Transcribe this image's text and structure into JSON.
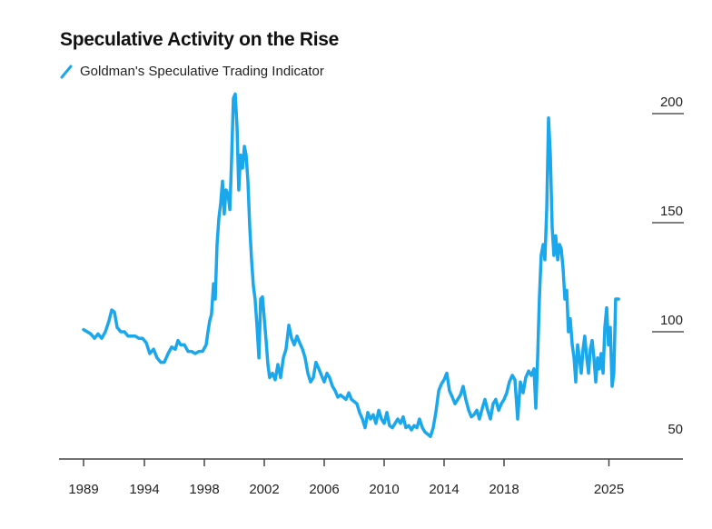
{
  "chart_data": {
    "type": "line",
    "title": "Speculative Activity on the Rise",
    "legend": [
      {
        "label": "Goldman's Speculative Trading Indicator",
        "color": "#1aa7ec"
      }
    ],
    "legend_position": "top-left",
    "xlabel": "",
    "ylabel": "",
    "x_ticks": [
      1989,
      1994,
      1998,
      2002,
      2006,
      2010,
      2014,
      2018,
      2025
    ],
    "y_ticks": [
      50,
      100,
      150,
      200
    ],
    "ylim": [
      42,
      210
    ],
    "y_axis_position": "right",
    "grid": false,
    "series": [
      {
        "name": "Goldman's Speculative Trading Indicator",
        "color": "#1aa7ec",
        "x": [
          1989.0,
          1989.3,
          1989.6,
          1989.9,
          1990.19,
          1990.49,
          1990.79,
          1991.09,
          1991.31,
          1991.54,
          1991.76,
          1992.06,
          1992.36,
          1992.66,
          1992.96,
          1993.25,
          1993.55,
          1993.85,
          1994.12,
          1994.36,
          1994.61,
          1994.85,
          1995.09,
          1995.33,
          1995.58,
          1995.82,
          1996.06,
          1996.24,
          1996.42,
          1996.67,
          1996.91,
          1997.15,
          1997.39,
          1997.64,
          1997.88,
          1998.12,
          1998.24,
          1998.36,
          1998.48,
          1998.61,
          1998.73,
          1998.85,
          1998.97,
          1999.09,
          1999.21,
          1999.33,
          1999.45,
          1999.58,
          1999.7,
          1999.82,
          1999.94,
          2000.06,
          2000.18,
          2000.3,
          2000.42,
          2000.55,
          2000.67,
          2000.79,
          2000.91,
          2001.03,
          2001.15,
          2001.27,
          2001.39,
          2001.52,
          2001.64,
          2001.76,
          2001.88,
          2002.0,
          2002.12,
          2002.24,
          2002.36,
          2002.55,
          2002.73,
          2002.91,
          2003.09,
          2003.27,
          2003.45,
          2003.64,
          2003.82,
          2004.0,
          2004.18,
          2004.36,
          2004.55,
          2004.73,
          2004.91,
          2005.09,
          2005.27,
          2005.45,
          2005.64,
          2005.82,
          2006.0,
          2006.18,
          2006.36,
          2006.55,
          2006.73,
          2006.91,
          2007.09,
          2007.27,
          2007.45,
          2007.64,
          2007.82,
          2008.0,
          2008.18,
          2008.36,
          2008.55,
          2008.73,
          2008.91,
          2009.09,
          2009.27,
          2009.45,
          2009.64,
          2009.82,
          2010.0,
          2010.18,
          2010.36,
          2010.55,
          2010.73,
          2010.91,
          2011.09,
          2011.27,
          2011.45,
          2011.64,
          2011.82,
          2012.0,
          2012.18,
          2012.36,
          2012.55,
          2012.73,
          2012.91,
          2013.09,
          2013.27,
          2013.45,
          2013.64,
          2013.82,
          2014.0,
          2014.18,
          2014.36,
          2014.55,
          2014.73,
          2014.91,
          2015.09,
          2015.27,
          2015.45,
          2015.64,
          2015.82,
          2016.0,
          2016.18,
          2016.36,
          2016.55,
          2016.73,
          2016.91,
          2017.09,
          2017.27,
          2017.45,
          2017.64,
          2017.82,
          2018.0,
          2018.18,
          2018.36,
          2018.55,
          2018.73,
          2018.91,
          2019.09,
          2019.27,
          2019.45,
          2019.64,
          2019.82,
          2020.0,
          2020.12,
          2020.24,
          2020.36,
          2020.48,
          2020.61,
          2020.73,
          2020.85,
          2020.97,
          2021.09,
          2021.21,
          2021.33,
          2021.45,
          2021.58,
          2021.7,
          2021.82,
          2021.94,
          2022.06,
          2022.18,
          2022.3,
          2022.42,
          2022.55,
          2022.67,
          2022.79,
          2022.91,
          2023.03,
          2023.15,
          2023.27,
          2023.39,
          2023.52,
          2023.64,
          2023.76,
          2023.88,
          2024.0,
          2024.12,
          2024.24,
          2024.36,
          2024.48,
          2024.61,
          2024.73,
          2024.85,
          2024.97,
          2025.09,
          2025.21,
          2025.33,
          2025.45,
          2025.64
        ],
        "y": [
          101,
          100,
          99,
          97,
          99,
          97,
          100,
          105,
          110,
          109,
          102,
          100,
          100,
          98,
          98,
          98,
          97,
          97,
          95,
          90,
          92,
          88,
          86,
          86,
          90,
          93,
          92,
          96,
          94,
          94,
          91,
          91,
          90,
          91,
          91,
          94,
          100,
          105,
          108,
          122,
          115,
          140,
          152,
          159,
          169,
          154,
          165,
          163,
          156,
          179,
          207,
          209,
          194,
          165,
          181,
          175,
          185,
          181,
          169,
          148,
          133,
          121,
          115,
          102,
          88,
          115,
          116,
          106,
          96,
          85,
          79,
          81,
          78,
          85,
          79,
          88,
          92,
          103,
          97,
          94,
          98,
          95,
          92,
          88,
          81,
          77,
          79,
          86,
          83,
          80,
          77,
          81,
          79,
          75,
          73,
          70,
          71,
          70,
          69,
          72,
          69,
          68,
          67,
          63,
          60,
          56,
          63,
          60,
          62,
          58,
          64,
          60,
          58,
          63,
          57,
          56,
          58,
          60,
          58,
          61,
          56,
          57,
          55,
          57,
          56,
          60,
          56,
          54,
          53,
          52,
          56,
          63,
          73,
          76,
          78,
          81,
          73,
          70,
          67,
          69,
          71,
          75,
          69,
          64,
          61,
          62,
          64,
          60,
          65,
          69,
          64,
          60,
          67,
          69,
          64,
          67,
          69,
          72,
          77,
          80,
          78,
          60,
          77,
          72,
          79,
          82,
          80,
          83,
          65,
          88,
          115,
          135,
          140,
          133,
          156,
          198,
          181,
          148,
          135,
          144,
          133,
          140,
          138,
          129,
          115,
          119,
          100,
          106,
          94,
          88,
          77,
          94,
          88,
          81,
          92,
          98,
          88,
          81,
          92,
          96,
          88,
          77,
          88,
          83,
          90,
          81,
          102,
          111,
          94,
          102,
          75,
          81,
          115,
          115
        ]
      }
    ]
  }
}
